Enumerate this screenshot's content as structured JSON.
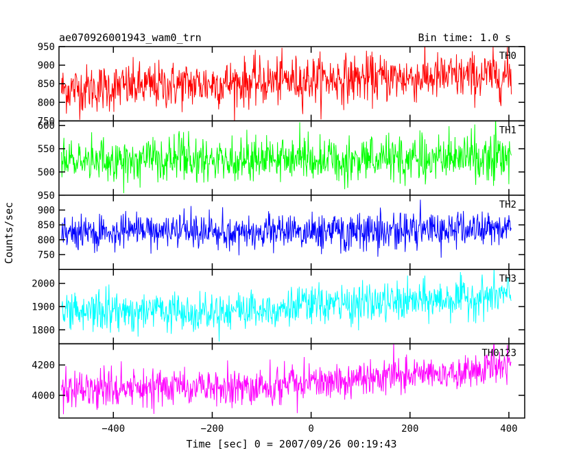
{
  "chart_data": {
    "type": "line",
    "title_left": "ae070926001943_wam0_trn",
    "title_right": "Bin time: 1.0 s",
    "xlabel": "Time [sec] 0 = 2007/09/26 00:19:43",
    "ylabel": "Counts/sec",
    "xlim": [
      -510,
      432
    ],
    "x_ticks": [
      -400,
      -200,
      0,
      200,
      400
    ],
    "x_tick_labels": [
      "−400",
      "−200",
      "0",
      "200",
      "400"
    ],
    "x_range": [
      -505,
      405
    ],
    "bin_time": 1.0,
    "grid": false,
    "panels": [
      {
        "label": "TH0",
        "color": "#ff0000",
        "ylim": [
          750,
          950
        ],
        "y_ticks": [
          750,
          800,
          850,
          900,
          950
        ],
        "y_tick_labels": [
          "750",
          "800",
          "850",
          "900",
          "950"
        ],
        "trend": [
          [
            -505,
            835
          ],
          [
            -300,
            845
          ],
          [
            -100,
            855
          ],
          [
            0,
            862
          ],
          [
            200,
            866
          ],
          [
            405,
            872
          ]
        ],
        "noise": 32
      },
      {
        "label": "TH1",
        "color": "#00ff00",
        "ylim": [
          450,
          610
        ],
        "y_ticks": [
          500,
          550,
          600
        ],
        "y_tick_labels": [
          "500",
          "550",
          "600"
        ],
        "trend": [
          [
            -505,
            525
          ],
          [
            -200,
            528
          ],
          [
            0,
            528
          ],
          [
            200,
            528
          ],
          [
            405,
            532
          ]
        ],
        "noise": 24
      },
      {
        "label": "TH2",
        "color": "#0000ff",
        "ylim": [
          700,
          950
        ],
        "y_ticks": [
          750,
          800,
          850,
          900,
          950
        ],
        "y_tick_labels": [
          "750",
          "800",
          "850",
          "900",
          "950"
        ],
        "trend": [
          [
            -505,
            825
          ],
          [
            -200,
            825
          ],
          [
            0,
            828
          ],
          [
            200,
            832
          ],
          [
            405,
            838
          ]
        ],
        "noise": 30
      },
      {
        "label": "TH3",
        "color": "#00ffff",
        "ylim": [
          1740,
          2060
        ],
        "y_ticks": [
          1800,
          1900,
          2000
        ],
        "y_tick_labels": [
          "1800",
          "1900",
          "2000"
        ],
        "trend": [
          [
            -505,
            1880
          ],
          [
            -300,
            1882
          ],
          [
            -100,
            1890
          ],
          [
            0,
            1905
          ],
          [
            200,
            1920
          ],
          [
            405,
            1950
          ]
        ],
        "noise": 42
      },
      {
        "label": "TH0123",
        "color": "#ff00ff",
        "ylim": [
          3850,
          4340
        ],
        "y_ticks": [
          4000,
          4200
        ],
        "y_tick_labels": [
          "4000",
          "4200"
        ],
        "trend": [
          [
            -505,
            4030
          ],
          [
            -300,
            4045
          ],
          [
            -100,
            4060
          ],
          [
            0,
            4090
          ],
          [
            200,
            4135
          ],
          [
            405,
            4180
          ]
        ],
        "noise": 62
      }
    ]
  }
}
